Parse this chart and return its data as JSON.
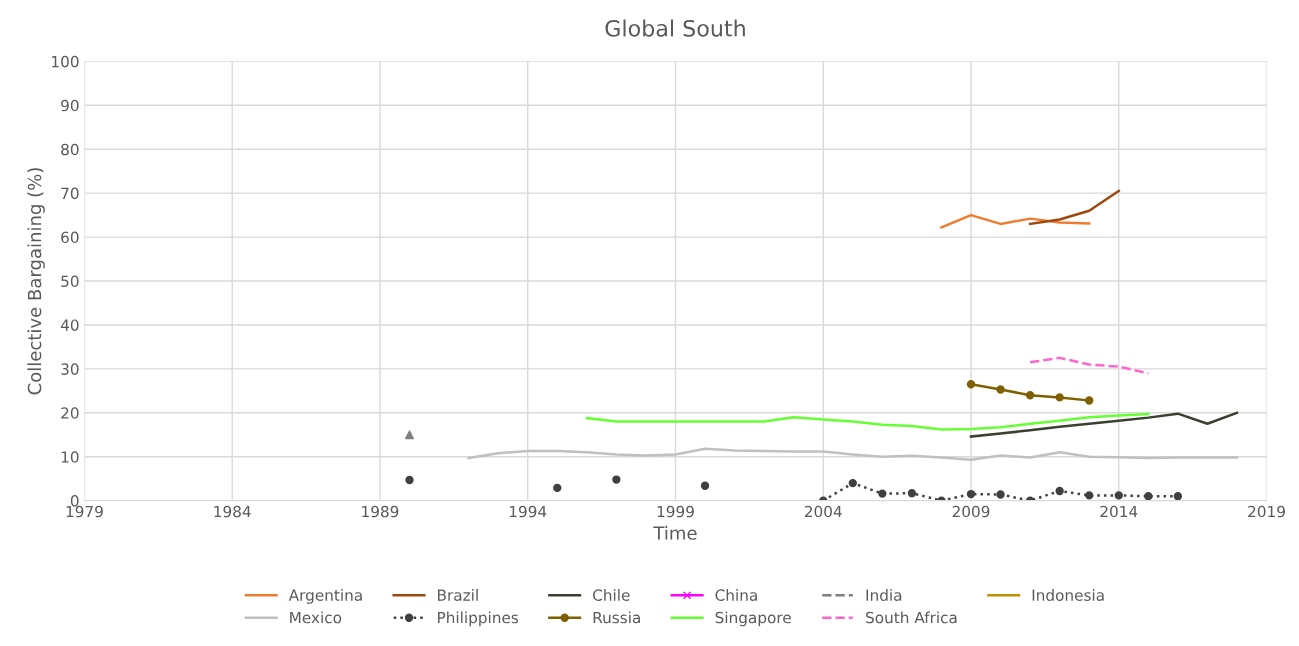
{
  "chart_data": {
    "type": "line",
    "title": "Global South",
    "xlabel": "Time",
    "ylabel": "Collective Bargaining (%)",
    "xlim": [
      1979,
      2019
    ],
    "xticks": [
      1979,
      1984,
      1989,
      1994,
      1999,
      2004,
      2009,
      2014,
      2019
    ],
    "ylim": [
      0,
      100
    ],
    "yticks": [
      0,
      10,
      20,
      30,
      40,
      50,
      60,
      70,
      80,
      90,
      100
    ],
    "grid": true,
    "legend": "bottom",
    "marker": "none",
    "line_style": "solid",
    "series": [
      {
        "name": "Argentina",
        "color": "#ed7d31",
        "x": [
          2008,
          2009,
          2010,
          2011,
          2012,
          2013
        ],
        "values": [
          62.2,
          65,
          63,
          64.2,
          63.3,
          63.1
        ]
      },
      {
        "name": "Brazil",
        "color": "#9e480e",
        "x": [
          2011,
          2012,
          2013,
          2014
        ],
        "values": [
          63,
          64,
          66,
          70.5
        ]
      },
      {
        "name": "Chile",
        "color": "#3a4030",
        "x": [
          2009,
          2010,
          2011,
          2012,
          2013,
          2014,
          2015,
          2016,
          2017,
          2018
        ],
        "values": [
          14.6,
          15.3,
          16,
          16.8,
          17.5,
          18.2,
          18.9,
          19.8,
          17.5,
          20
        ]
      },
      {
        "name": "China",
        "color": "#ff00ff",
        "marker": "cross"
      },
      {
        "name": "India",
        "color": "#7f7f7f",
        "line_style": "dashed"
      },
      {
        "name": "Indonesia",
        "color": "#bf9000"
      },
      {
        "name": "Mexico",
        "color": "#c0c0c0",
        "x": [
          1992,
          1993,
          1994,
          1995,
          1996,
          1997,
          1998,
          1999,
          2000,
          2001,
          2002,
          2003,
          2004,
          2005,
          2006,
          2007,
          2008,
          2009,
          2010,
          2011,
          2012,
          2013,
          2014,
          2015,
          2016,
          2017,
          2018
        ],
        "values": [
          9.7,
          10.8,
          11.3,
          11.3,
          11,
          10.5,
          10.3,
          10.5,
          11.8,
          11.4,
          11.3,
          11.2,
          11.2,
          10.5,
          10,
          10.2,
          9.8,
          9.3,
          10.3,
          9.8,
          11,
          10,
          9.9,
          9.7,
          9.8,
          9.8,
          9.8
        ]
      },
      {
        "name": "Philippines",
        "color": "#404040",
        "marker": "circle",
        "line_style": "dotted",
        "x": [
          1990,
          1991,
          1995,
          1996,
          1997,
          1998,
          2000,
          2001,
          2004,
          2005,
          2006,
          2007,
          2008,
          2009,
          2010,
          2011,
          2012,
          2013,
          2014,
          2015,
          2016
        ],
        "values": [
          4.7,
          null,
          2.9,
          null,
          4.8,
          null,
          3.4,
          null,
          0,
          4,
          1.6,
          1.7,
          0,
          1.5,
          1.4,
          0,
          2.2,
          1.2,
          1.2,
          1,
          1
        ]
      },
      {
        "name": "Russia",
        "color": "#7f6000",
        "marker": "circle",
        "x": [
          2009,
          2010,
          2011,
          2012,
          2013
        ],
        "values": [
          26.5,
          25.3,
          24,
          23.5,
          22.8
        ]
      },
      {
        "name": "Singapore",
        "color": "#66ff33",
        "x": [
          1996,
          1997,
          1998,
          1999,
          2000,
          2001,
          2002,
          2003,
          2004,
          2005,
          2006,
          2007,
          2008,
          2009,
          2010,
          2011,
          2012,
          2013,
          2014,
          2015
        ],
        "values": [
          18.8,
          18,
          18,
          18,
          18,
          18,
          18,
          19,
          18.5,
          18,
          17.3,
          17,
          16.2,
          16.3,
          16.7,
          17.5,
          18.2,
          19,
          19.4,
          19.7
        ]
      },
      {
        "name": "South Africa",
        "color": "#ff66cc",
        "line_style": "dashed",
        "x": [
          2011,
          2012,
          2013,
          2014,
          2015
        ],
        "values": [
          31.5,
          32.5,
          31,
          30.5,
          29
        ]
      },
      {
        "type": "scatter",
        "color": "#808080",
        "marker": "triangle",
        "x": [
          1990
        ],
        "values": [
          15
        ]
      }
    ]
  }
}
